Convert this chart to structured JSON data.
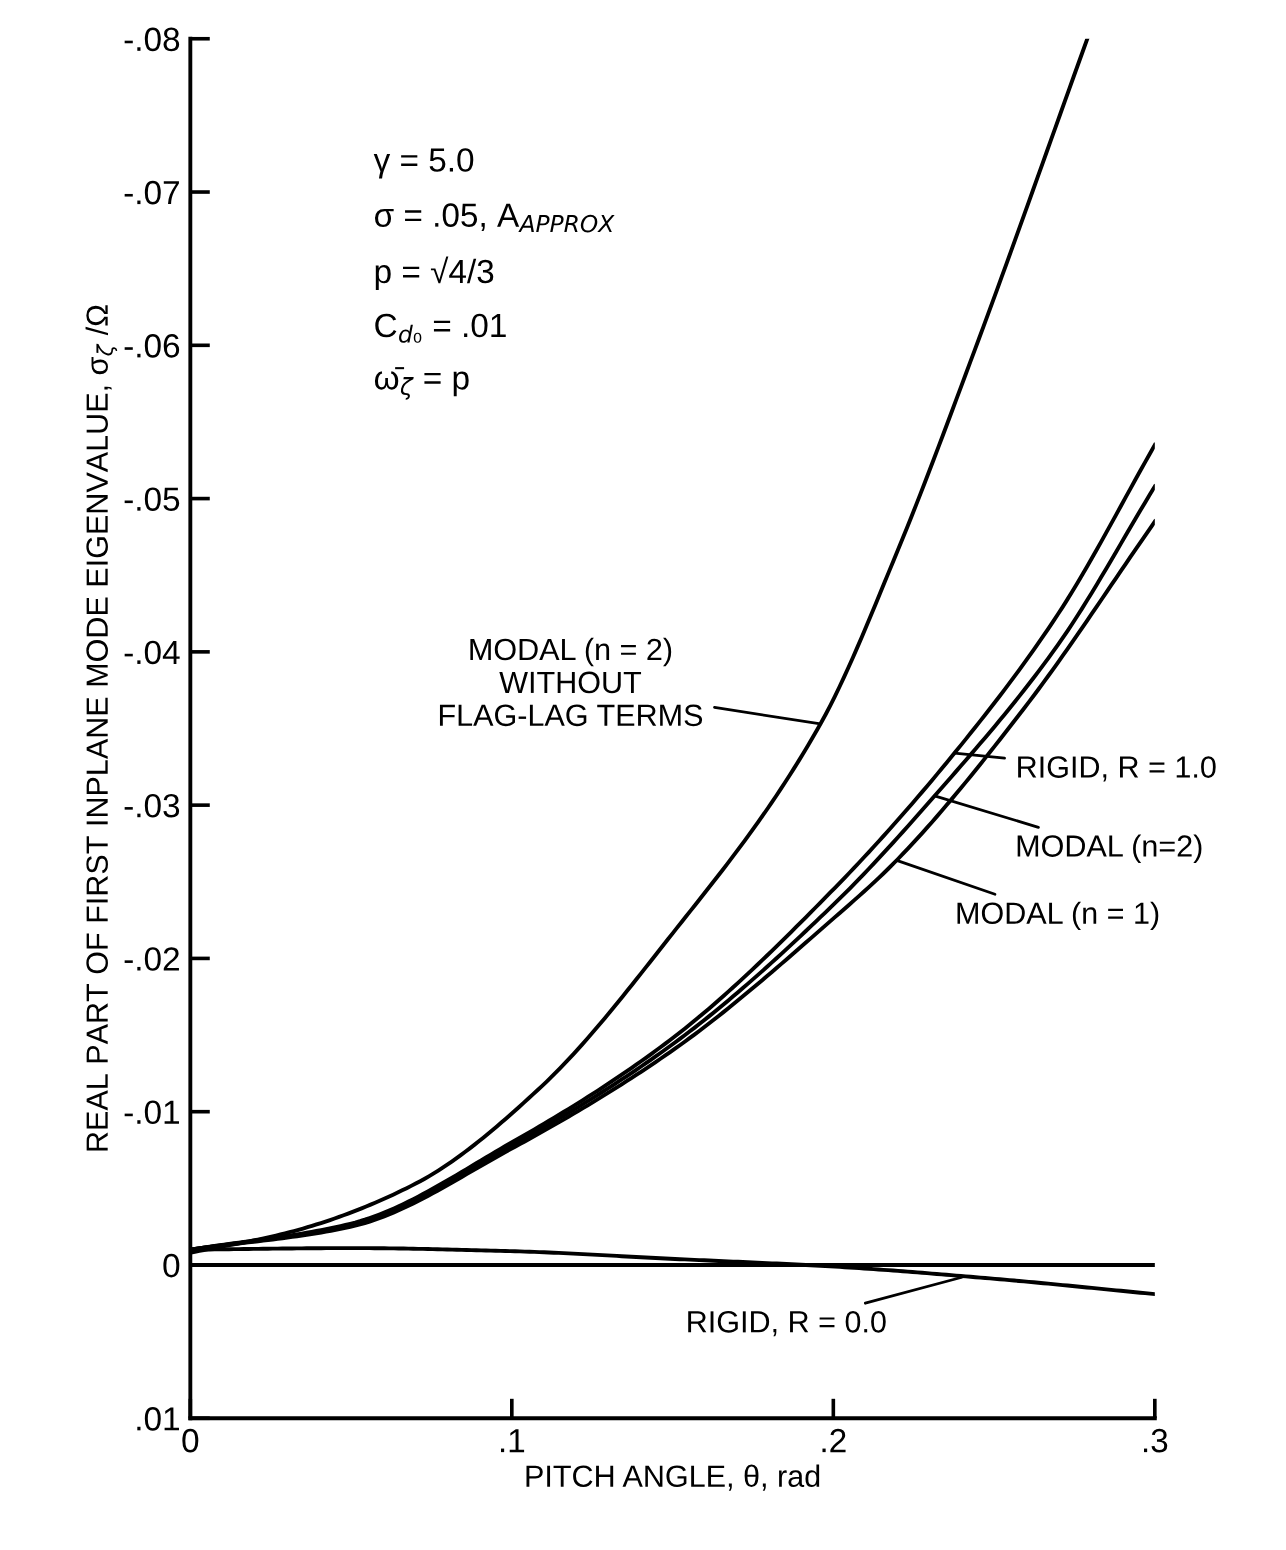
{
  "chart_data": {
    "type": "line",
    "xlabel": "PITCH ANGLE, θ, rad",
    "ylabel": "REAL PART OF FIRST INPLANE MODE EIGENVALUE, σ$_{ζ}$ /Ω",
    "xlim": [
      0,
      0.3
    ],
    "ylim": [
      0.01,
      -0.08
    ],
    "xticks": [
      0,
      {
        "value": 0.1,
        "label": ".1"
      },
      {
        "value": 0.2,
        "label": ".2"
      },
      {
        "value": 0.3,
        "label": ".3"
      }
    ],
    "yticks": [
      {
        "value": 0.01,
        "label": ".01"
      },
      0,
      {
        "value": -0.01,
        "label": "-.01"
      },
      {
        "value": -0.02,
        "label": "-.02"
      },
      {
        "value": -0.03,
        "label": "-.03"
      },
      {
        "value": -0.04,
        "label": "-.04"
      },
      {
        "value": -0.05,
        "label": "-.05"
      },
      {
        "value": -0.06,
        "label": "-.06"
      },
      {
        "value": -0.07,
        "label": "-.07"
      },
      {
        "value": -0.08,
        "label": "-.08"
      }
    ],
    "grid": false,
    "legend": false,
    "marker": "none",
    "line_style": "solid",
    "series": [
      {
        "color": "#000000",
        "x": [
          0,
          0.032,
          0.07,
          0.109,
          0.148,
          0.196,
          0.22,
          0.244,
          0.279
        ],
        "values": [
          -0.0008,
          -0.0022,
          -0.0053,
          -0.0116,
          -0.0211,
          -0.0353,
          -0.0466,
          -0.0597,
          -0.08
        ]
      },
      {
        "color": "#000000",
        "x": [
          0,
          0.05,
          0.1,
          0.15,
          0.2,
          0.2377,
          0.27,
          0.3
        ],
        "values": [
          -0.001,
          -0.0027,
          -0.008,
          -0.0148,
          -0.0245,
          -0.0334,
          -0.0425,
          -0.0535
        ]
      },
      {
        "color": "#000000",
        "x": [
          0,
          0.05,
          0.1,
          0.15,
          0.2,
          0.2315,
          0.27,
          0.3
        ],
        "values": [
          -0.001,
          -0.0026,
          -0.0078,
          -0.0144,
          -0.0235,
          -0.0306,
          -0.0405,
          -0.0508
        ]
      },
      {
        "color": "#000000",
        "x": [
          0,
          0.05,
          0.1,
          0.15,
          0.2,
          0.2197,
          0.26,
          0.3
        ],
        "values": [
          -0.001,
          -0.0025,
          -0.0076,
          -0.014,
          -0.0226,
          -0.0264,
          -0.0365,
          -0.0485
        ]
      },
      {
        "color": "#000000",
        "x": [
          0,
          0.05,
          0.1,
          0.15,
          0.2,
          0.25,
          0.3
        ],
        "values": [
          -0.001,
          -0.0011,
          -0.0009,
          -0.0004,
          0.0001,
          0.0009,
          0.0019
        ]
      },
      {
        "color": "#000000",
        "x": [
          0,
          0.3
        ],
        "values": [
          0,
          0
        ]
      }
    ],
    "annotations": [
      "γ = 5.0",
      "σ = .05, A$_{APPROX}$",
      "p = √4/3",
      "C$_{d₀}$ = .01",
      "ω̄$_{ζ}$ = p",
      {
        "text": "MODAL (n = 2)\nWITHOUT\nFLAG-LAG TERMS",
        "x": 0.196,
        "y": -0.0353
      },
      {
        "text": "RIGID, R = 1.0",
        "x": 0.2377,
        "y": -0.0334
      },
      {
        "text": "MODAL (n=2)",
        "x": 0.2315,
        "y": -0.0306
      },
      {
        "text": "MODAL (n = 1)",
        "x": 0.2197,
        "y": -0.0264
      },
      {
        "text": "RIGID, R = 0.0",
        "x": 0.24,
        "y": 0.0008
      }
    ]
  }
}
